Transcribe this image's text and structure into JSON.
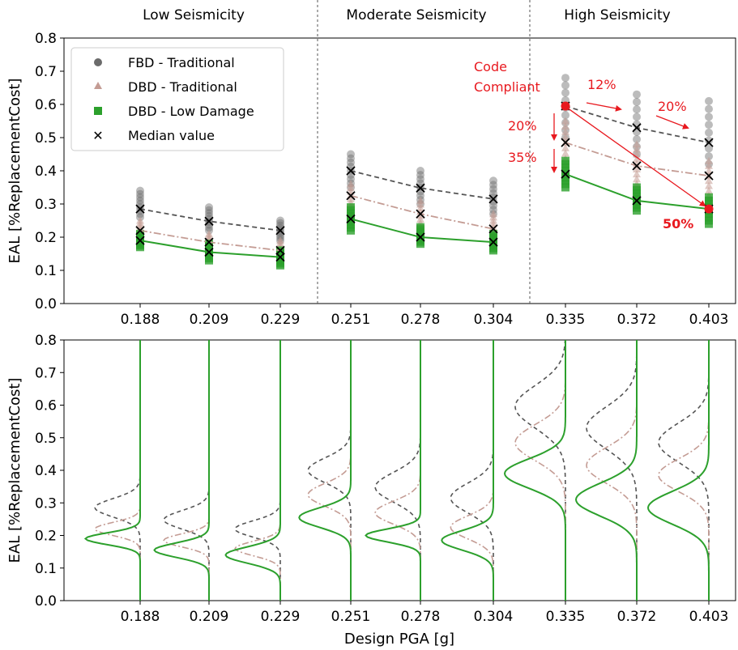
{
  "chart_data": [
    {
      "type": "scatter",
      "panel": "top",
      "ylabel": "EAL [%ReplacementCost]",
      "ylim": [
        0,
        0.8
      ],
      "yticks": [
        "0.0",
        "0.1",
        "0.2",
        "0.3",
        "0.4",
        "0.5",
        "0.6",
        "0.7",
        "0.8"
      ],
      "categories": [
        "0.188",
        "0.209",
        "0.229",
        "0.251",
        "0.278",
        "0.304",
        "0.335",
        "0.372",
        "0.403"
      ],
      "regions": [
        "Low Seismicity",
        "Moderate Seismicity",
        "High Seismicity"
      ],
      "series": [
        {
          "name": "FBD - Traditional",
          "color": "#6b6b6b",
          "marker": "circle",
          "median": [
            0.285,
            0.248,
            0.22,
            0.4,
            0.348,
            0.315,
            0.595,
            0.53,
            0.485
          ],
          "spread": [
            [
              0.26,
              0.34
            ],
            [
              0.22,
              0.29
            ],
            [
              0.19,
              0.25
            ],
            [
              0.35,
              0.45
            ],
            [
              0.3,
              0.4
            ],
            [
              0.27,
              0.37
            ],
            [
              0.5,
              0.68
            ],
            [
              0.45,
              0.63
            ],
            [
              0.42,
              0.61
            ]
          ]
        },
        {
          "name": "DBD - Traditional",
          "color": "#c49c94",
          "marker": "triangle",
          "median": [
            0.22,
            0.185,
            0.16,
            0.325,
            0.27,
            0.225,
            0.485,
            0.415,
            0.385
          ],
          "spread": [
            [
              0.19,
              0.25
            ],
            [
              0.16,
              0.21
            ],
            [
              0.13,
              0.19
            ],
            [
              0.27,
              0.36
            ],
            [
              0.22,
              0.31
            ],
            [
              0.19,
              0.27
            ],
            [
              0.42,
              0.55
            ],
            [
              0.36,
              0.48
            ],
            [
              0.31,
              0.43
            ]
          ]
        },
        {
          "name": "DBD - Low Damage",
          "color": "#2ca02c",
          "marker": "square",
          "median": [
            0.19,
            0.155,
            0.14,
            0.255,
            0.2,
            0.185,
            0.39,
            0.31,
            0.285
          ],
          "spread": [
            [
              0.17,
              0.21
            ],
            [
              0.13,
              0.18
            ],
            [
              0.115,
              0.16
            ],
            [
              0.22,
              0.29
            ],
            [
              0.18,
              0.23
            ],
            [
              0.16,
              0.21
            ],
            [
              0.35,
              0.43
            ],
            [
              0.28,
              0.35
            ],
            [
              0.24,
              0.32
            ]
          ]
        }
      ],
      "median_legend": "Median value",
      "annotations": {
        "code_compliant_line1": "Code",
        "code_compliant_line2": "Compliant",
        "pct_12": "12%",
        "pct_20_right": "20%",
        "pct_20_down": "20%",
        "pct_35": "35%",
        "pct_50": "50%"
      }
    },
    {
      "type": "area",
      "panel": "bottom",
      "ylabel": "EAL [%ReplacementCost]",
      "xlabel": "Design PGA [g]",
      "ylim": [
        0,
        0.8
      ],
      "yticks": [
        "0.0",
        "0.1",
        "0.2",
        "0.3",
        "0.4",
        "0.5",
        "0.6",
        "0.7",
        "0.8"
      ],
      "categories": [
        "0.188",
        "0.209",
        "0.229",
        "0.251",
        "0.278",
        "0.304",
        "0.335",
        "0.372",
        "0.403"
      ],
      "distributions": [
        {
          "fbd": [
            0.285,
            0.028
          ],
          "dbd": [
            0.22,
            0.02
          ],
          "ld": [
            0.19,
            0.018
          ]
        },
        {
          "fbd": [
            0.248,
            0.028
          ],
          "dbd": [
            0.185,
            0.02
          ],
          "ld": [
            0.155,
            0.022
          ]
        },
        {
          "fbd": [
            0.22,
            0.025
          ],
          "dbd": [
            0.16,
            0.022
          ],
          "ld": [
            0.14,
            0.025
          ]
        },
        {
          "fbd": [
            0.4,
            0.038
          ],
          "dbd": [
            0.325,
            0.035
          ],
          "ld": [
            0.255,
            0.03
          ]
        },
        {
          "fbd": [
            0.348,
            0.045
          ],
          "dbd": [
            0.27,
            0.035
          ],
          "ld": [
            0.2,
            0.02
          ]
        },
        {
          "fbd": [
            0.315,
            0.045
          ],
          "dbd": [
            0.225,
            0.035
          ],
          "ld": [
            0.185,
            0.03
          ]
        },
        {
          "fbd": [
            0.595,
            0.065
          ],
          "dbd": [
            0.485,
            0.055
          ],
          "ld": [
            0.39,
            0.045
          ]
        },
        {
          "fbd": [
            0.53,
            0.065
          ],
          "dbd": [
            0.415,
            0.055
          ],
          "ld": [
            0.31,
            0.05
          ]
        },
        {
          "fbd": [
            0.485,
            0.06
          ],
          "dbd": [
            0.385,
            0.05
          ],
          "ld": [
            0.285,
            0.05
          ]
        }
      ]
    }
  ]
}
